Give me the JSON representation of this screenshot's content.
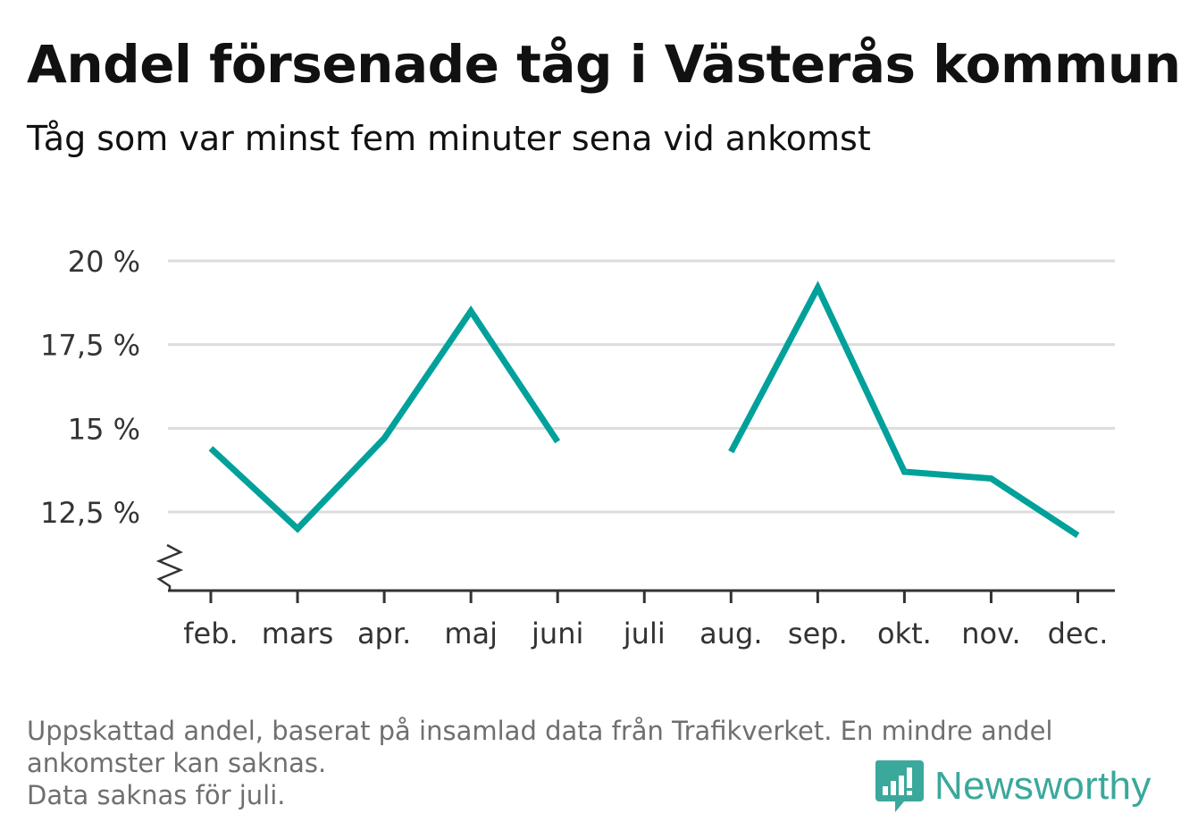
{
  "title": "Andel försenade tåg i Västerås kommun",
  "subtitle": "Tåg som var minst fem minuter sena vid ankomst",
  "footnote": {
    "line1": "Uppskattad andel, baserat på insamlad data från Trafikverket. En mindre andel",
    "line2": "ankomster kan saknas.",
    "line3": "Data saknas för juli."
  },
  "brand": {
    "name": "Newsworthy",
    "color": "#3aa89b"
  },
  "chart_data": {
    "type": "line",
    "categories": [
      "feb.",
      "mars",
      "apr.",
      "maj",
      "juni",
      "juli",
      "aug.",
      "sep.",
      "okt.",
      "nov.",
      "dec."
    ],
    "series": [
      {
        "values": [
          14.4,
          12.0,
          14.7,
          18.5,
          14.6,
          null,
          14.3,
          19.2,
          13.7,
          13.5,
          11.8
        ]
      }
    ],
    "y_ticks": [
      12.5,
      15,
      17.5,
      20
    ],
    "y_tick_labels": [
      "12,5 %",
      "15 %",
      "17,5 %",
      "20 %"
    ],
    "ylim": [
      10.2,
      20
    ],
    "y_axis_break": true,
    "grid": true,
    "line_color": "#00a19a",
    "xlabel": "",
    "ylabel": ""
  }
}
